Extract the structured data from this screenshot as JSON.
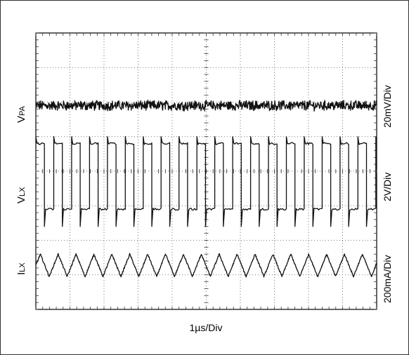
{
  "chart_data": {
    "type": "line",
    "title": "",
    "xlabel": "1µs/Div",
    "grid": true,
    "x_divisions": 10,
    "y_divisions": 8,
    "x_unit_per_div_us": 1,
    "channels": [
      {
        "key": "vpa",
        "label_main": "V",
        "label_sub": "PA",
        "scale": "20mV/Div",
        "waveform": "noisy dc",
        "level_div": 5.9,
        "noise_pp_div": 0.25
      },
      {
        "key": "vlx",
        "label_main": "V",
        "label_sub": "LX",
        "scale": "2V/Div",
        "waveform": "square",
        "high_div": 4.8,
        "low_div": 2.9,
        "period_us": 0.525,
        "duty": 0.48,
        "low_spike_div": 2.4,
        "high_spike_div": 5.0
      },
      {
        "key": "ilx",
        "label_main": "I",
        "label_sub": "LX",
        "scale": "200mA/Div",
        "waveform": "triangle",
        "peak_div": 1.6,
        "trough_div": 0.95,
        "period_us": 0.525
      }
    ]
  }
}
